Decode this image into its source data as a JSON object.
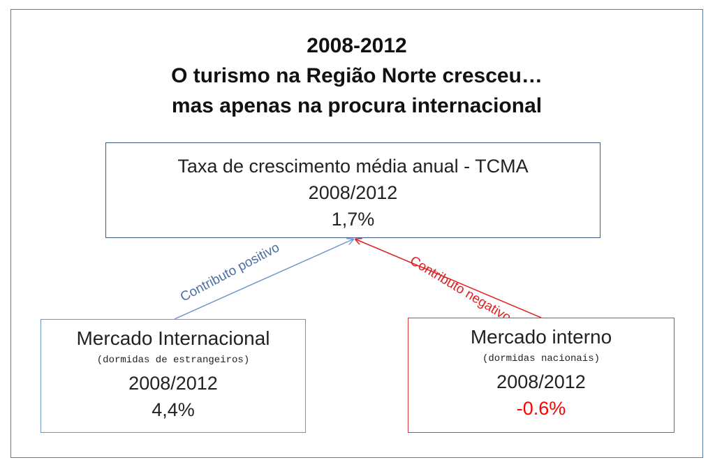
{
  "title": {
    "line1": "2008-2012",
    "line2": "O turismo na Região Norte cresceu…",
    "line3": "mas apenas na procura internacional"
  },
  "top_box": {
    "line1": "Taxa de crescimento média anual - TCMA",
    "period": "2008/2012",
    "value": "1,7%"
  },
  "left_box": {
    "name": "Mercado Internacional",
    "note": "(dormidas de estrangeiros)",
    "period": "2008/2012",
    "value": "4,4%"
  },
  "right_box": {
    "name": "Mercado interno",
    "note": "(dormidas nacionais)",
    "period": "2008/2012",
    "value": "-0.6%"
  },
  "arrows": {
    "positive_label": "Contributo positivo",
    "negative_label": "Contributo negativo"
  },
  "colors": {
    "positive": "#6f96c8",
    "negative": "#ff0000",
    "frame": "#5a78a8"
  }
}
